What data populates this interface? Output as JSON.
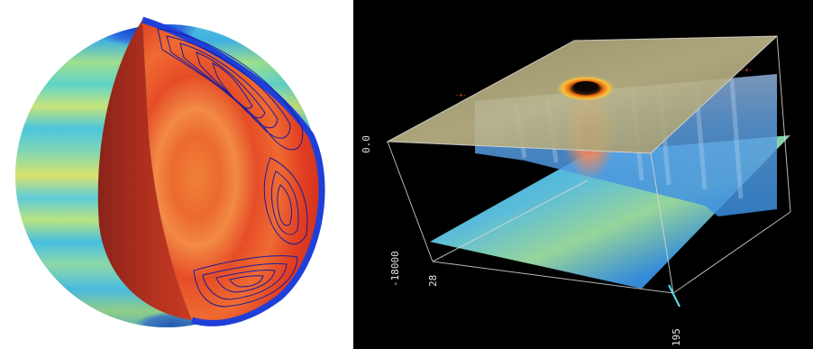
{
  "left_panel": {
    "icon": "sphere-cutaway-icon"
  },
  "right_panel": {
    "icon": "volume-slices-icon",
    "axis_labels": {
      "top_depth": "0.0",
      "bottom_depth": "-18000",
      "corner_a": "28",
      "corner_b": "195"
    }
  },
  "colors": {
    "background_right": "#000000",
    "red": "#e43b22",
    "dark_red": "#a82d1f",
    "cyan": "#3fd0d8",
    "blue": "#2a6fe0",
    "yellow": "#d8e06a",
    "stream_lines": "#1b1b9a",
    "sand": "#b9b081"
  }
}
